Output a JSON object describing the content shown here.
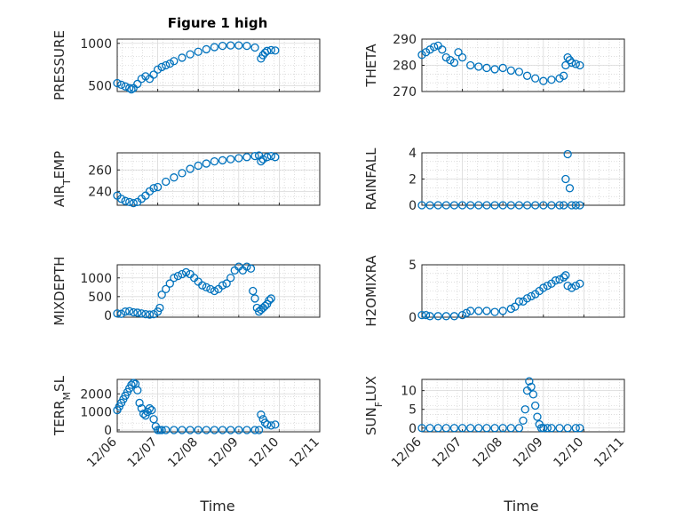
{
  "figure": {
    "title": "Figure 1 high",
    "xlabel": "Time",
    "marker_color": "#0072BD",
    "grid": true,
    "x_ticks": [
      "12/06",
      "12/07",
      "12/08",
      "12/09",
      "12/10",
      "12/11"
    ]
  },
  "chart_data": [
    {
      "type": "scatter",
      "id": "pressure",
      "title": "Figure 1 high",
      "ylabel": "PRESSURE",
      "ylabel_parts": [
        {
          "t": "PRESSURE"
        }
      ],
      "xlim": [
        0,
        5
      ],
      "ylim": [
        430,
        1050
      ],
      "yticks": [
        500,
        1000
      ],
      "x": [
        0.0,
        0.1,
        0.2,
        0.3,
        0.35,
        0.4,
        0.5,
        0.6,
        0.7,
        0.8,
        0.9,
        1.0,
        1.1,
        1.2,
        1.3,
        1.4,
        1.6,
        1.8,
        2.0,
        2.2,
        2.4,
        2.6,
        2.8,
        3.0,
        3.2,
        3.4,
        3.55,
        3.6,
        3.65,
        3.7,
        3.8,
        3.9
      ],
      "y": [
        530,
        510,
        490,
        470,
        455,
        470,
        520,
        580,
        610,
        580,
        630,
        690,
        720,
        740,
        760,
        790,
        830,
        870,
        900,
        930,
        955,
        970,
        975,
        975,
        970,
        950,
        820,
        860,
        890,
        910,
        920,
        915
      ]
    },
    {
      "type": "scatter",
      "id": "theta",
      "ylabel": "THETA",
      "ylabel_parts": [
        {
          "t": "THETA"
        }
      ],
      "xlim": [
        0,
        5
      ],
      "ylim": [
        270,
        290
      ],
      "yticks": [
        270,
        280,
        290
      ],
      "x": [
        0.0,
        0.1,
        0.2,
        0.3,
        0.4,
        0.5,
        0.6,
        0.7,
        0.8,
        0.9,
        1.0,
        1.2,
        1.4,
        1.6,
        1.8,
        2.0,
        2.2,
        2.4,
        2.6,
        2.8,
        3.0,
        3.2,
        3.4,
        3.5,
        3.55,
        3.6,
        3.65,
        3.7,
        3.8,
        3.9
      ],
      "y": [
        284,
        285,
        286,
        287,
        287.5,
        286,
        283,
        282,
        281,
        285,
        283,
        280,
        279.5,
        279,
        278.5,
        279,
        278,
        277.5,
        276,
        275,
        274,
        274.5,
        275,
        276,
        280,
        283,
        282,
        281,
        280.5,
        280
      ]
    },
    {
      "type": "scatter",
      "id": "air_temp",
      "ylabel": "AIR_TEMP",
      "ylabel_parts": [
        {
          "t": "AIR"
        },
        {
          "t": "T",
          "sub": true
        },
        {
          "t": "EMP"
        }
      ],
      "xlim": [
        0,
        5
      ],
      "ylim": [
        227,
        276
      ],
      "yticks": [
        240,
        260
      ],
      "x": [
        0.0,
        0.1,
        0.2,
        0.3,
        0.4,
        0.5,
        0.6,
        0.7,
        0.8,
        0.9,
        1.0,
        1.2,
        1.4,
        1.6,
        1.8,
        2.0,
        2.2,
        2.4,
        2.6,
        2.8,
        3.0,
        3.2,
        3.4,
        3.5,
        3.55,
        3.6,
        3.7,
        3.8,
        3.9
      ],
      "y": [
        236,
        233,
        231,
        230,
        229,
        230,
        233,
        236,
        240,
        243,
        244,
        249,
        253,
        257,
        261,
        264,
        266,
        268,
        269,
        270,
        271,
        272,
        273,
        273.5,
        268,
        270,
        272,
        273,
        272
      ]
    },
    {
      "type": "scatter",
      "id": "rainfall",
      "ylabel": "RAINFALL",
      "ylabel_parts": [
        {
          "t": "RAINFALL"
        }
      ],
      "xlim": [
        0,
        5
      ],
      "ylim": [
        0,
        4
      ],
      "yticks": [
        0,
        2,
        4
      ],
      "x": [
        0.0,
        0.2,
        0.4,
        0.6,
        0.8,
        1.0,
        1.2,
        1.4,
        1.6,
        1.8,
        2.0,
        2.2,
        2.4,
        2.6,
        2.8,
        3.0,
        3.2,
        3.4,
        3.5,
        3.55,
        3.6,
        3.65,
        3.7,
        3.8,
        3.9
      ],
      "y": [
        0,
        0,
        0,
        0,
        0,
        0,
        0,
        0,
        0,
        0,
        0,
        0,
        0,
        0,
        0,
        0,
        0,
        0,
        0,
        2.0,
        3.9,
        1.3,
        0,
        0,
        0
      ]
    },
    {
      "type": "scatter",
      "id": "mixdepth",
      "ylabel": "MIXDEPTH",
      "ylabel_parts": [
        {
          "t": "MIXDEPTH"
        }
      ],
      "xlim": [
        0,
        5
      ],
      "ylim": [
        -50,
        1350
      ],
      "yticks": [
        0,
        500,
        1000
      ],
      "x": [
        0.0,
        0.1,
        0.2,
        0.3,
        0.4,
        0.5,
        0.6,
        0.7,
        0.8,
        0.9,
        1.0,
        1.05,
        1.1,
        1.2,
        1.3,
        1.4,
        1.5,
        1.6,
        1.7,
        1.8,
        1.9,
        2.0,
        2.1,
        2.2,
        2.3,
        2.4,
        2.5,
        2.6,
        2.7,
        2.8,
        2.9,
        3.0,
        3.1,
        3.2,
        3.3,
        3.35,
        3.4,
        3.45,
        3.5,
        3.55,
        3.6,
        3.65,
        3.7,
        3.75,
        3.8
      ],
      "y": [
        50,
        40,
        100,
        110,
        80,
        70,
        50,
        30,
        20,
        30,
        100,
        200,
        550,
        700,
        850,
        1000,
        1050,
        1100,
        1150,
        1100,
        1000,
        900,
        800,
        750,
        700,
        650,
        700,
        800,
        850,
        1000,
        1200,
        1300,
        1200,
        1300,
        1250,
        650,
        450,
        200,
        100,
        150,
        200,
        250,
        300,
        400,
        450
      ]
    },
    {
      "type": "scatter",
      "id": "h2omixra",
      "ylabel": "H2OMIXRA",
      "ylabel_parts": [
        {
          "t": "H2OMIXRA"
        }
      ],
      "xlim": [
        0,
        5
      ],
      "ylim": [
        0,
        5
      ],
      "yticks": [
        0,
        5
      ],
      "x": [
        0.0,
        0.1,
        0.2,
        0.4,
        0.6,
        0.8,
        1.0,
        1.1,
        1.2,
        1.4,
        1.6,
        1.8,
        2.0,
        2.2,
        2.3,
        2.4,
        2.5,
        2.6,
        2.7,
        2.8,
        2.9,
        3.0,
        3.1,
        3.2,
        3.3,
        3.4,
        3.5,
        3.55,
        3.6,
        3.7,
        3.8,
        3.9
      ],
      "y": [
        0.2,
        0.2,
        0.1,
        0.1,
        0.1,
        0.1,
        0.2,
        0.4,
        0.6,
        0.6,
        0.6,
        0.5,
        0.6,
        0.8,
        1.0,
        1.5,
        1.5,
        1.8,
        2.0,
        2.2,
        2.5,
        2.8,
        3.0,
        3.2,
        3.5,
        3.6,
        3.8,
        4.0,
        3.0,
        2.8,
        3.0,
        3.2
      ]
    },
    {
      "type": "scatter",
      "id": "terr_msl",
      "ylabel": "TERR_MSL",
      "ylabel_parts": [
        {
          "t": "TERR"
        },
        {
          "t": "M",
          "sub": true
        },
        {
          "t": "SL"
        }
      ],
      "xlim": [
        0,
        5
      ],
      "ylim": [
        -100,
        2800
      ],
      "yticks": [
        0,
        1000,
        2000
      ],
      "x": [
        0.0,
        0.05,
        0.1,
        0.15,
        0.2,
        0.25,
        0.3,
        0.35,
        0.4,
        0.45,
        0.5,
        0.55,
        0.6,
        0.65,
        0.7,
        0.75,
        0.8,
        0.85,
        0.9,
        0.95,
        1.0,
        1.05,
        1.1,
        1.2,
        1.4,
        1.6,
        1.8,
        2.0,
        2.2,
        2.4,
        2.6,
        2.8,
        3.0,
        3.2,
        3.4,
        3.5,
        3.55,
        3.6,
        3.65,
        3.7,
        3.8,
        3.9
      ],
      "y": [
        1100,
        1300,
        1500,
        1700,
        1900,
        2100,
        2300,
        2500,
        2600,
        2550,
        2200,
        1500,
        1200,
        900,
        800,
        1000,
        1200,
        1100,
        600,
        200,
        0,
        0,
        0,
        0,
        0,
        0,
        0,
        0,
        0,
        0,
        0,
        0,
        0,
        0,
        0,
        0,
        850,
        600,
        400,
        300,
        250,
        300
      ]
    },
    {
      "type": "scatter",
      "id": "sun_flux",
      "ylabel": "SUN_FLUX",
      "ylabel_parts": [
        {
          "t": "SUN"
        },
        {
          "t": "F",
          "sub": true
        },
        {
          "t": "LUX"
        }
      ],
      "xlim": [
        0,
        5
      ],
      "ylim": [
        -1,
        13
      ],
      "yticks": [
        0,
        5,
        10
      ],
      "x": [
        0.0,
        0.2,
        0.4,
        0.6,
        0.8,
        1.0,
        1.2,
        1.4,
        1.6,
        1.8,
        2.0,
        2.2,
        2.4,
        2.5,
        2.55,
        2.6,
        2.65,
        2.7,
        2.75,
        2.8,
        2.85,
        2.9,
        2.95,
        3.0,
        3.1,
        3.2,
        3.4,
        3.6,
        3.8,
        3.9
      ],
      "y": [
        0,
        0,
        0,
        0,
        0,
        0,
        0,
        0,
        0,
        0,
        0,
        0,
        0,
        2,
        5,
        10,
        12.5,
        11,
        9,
        6,
        3,
        1,
        0,
        0,
        0,
        0,
        0,
        0,
        0,
        0
      ]
    }
  ]
}
